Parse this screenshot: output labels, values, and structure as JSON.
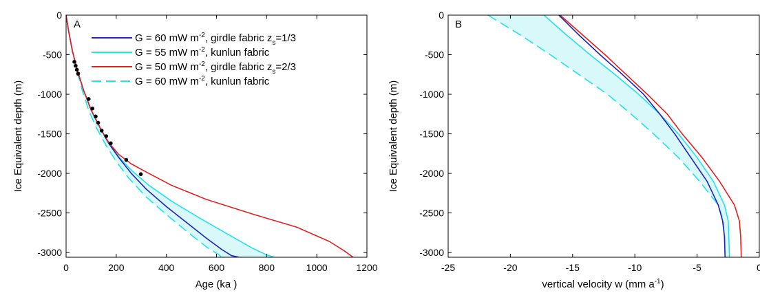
{
  "chart_data": [
    {
      "type": "line",
      "panel_label": "A",
      "xlabel": "Age (ka )",
      "ylabel": "Ice Equivalent depth (m)",
      "xlim": [
        0,
        1200
      ],
      "ylim": [
        -3060,
        0
      ],
      "xticks": [
        "0",
        "200",
        "400",
        "600",
        "800",
        "1000",
        "1200"
      ],
      "yticks": [
        "0",
        "-500",
        "-1000",
        "-1500",
        "-2000",
        "-2500",
        "-3000"
      ],
      "legend_position": "top-right",
      "legend": [
        {
          "main": "G = 60 mW m",
          "sup": "-2",
          "rest": ", girdle fabric z",
          "sub": "s",
          "tail": "=1/3",
          "color": "#1f1fbf",
          "dash": false
        },
        {
          "main": "G = 55 mW m",
          "sup": "-2",
          "rest": ", kunlun fabric",
          "sub": "",
          "tail": "",
          "color": "#22e0ea",
          "dash": false
        },
        {
          "main": "G = 50 mW m",
          "sup": "-2",
          "rest": ", girdle fabric z",
          "sub": "s",
          "tail": "=2/3",
          "color": "#e32020",
          "dash": false
        },
        {
          "main": "G = 60 mW m",
          "sup": "-2",
          "rest": ", kunlun fabric",
          "sub": "",
          "tail": "",
          "color": "#22e0ea",
          "dash": true
        }
      ],
      "series": [
        {
          "color": "#1f1fbf",
          "dash": false,
          "x": [
            0,
            10,
            25,
            45,
            70,
            100,
            135,
            170,
            210,
            260,
            320,
            400,
            480,
            560,
            620,
            660,
            690
          ],
          "y": [
            0,
            -200,
            -450,
            -700,
            -950,
            -1200,
            -1420,
            -1620,
            -1800,
            -2000,
            -2200,
            -2420,
            -2620,
            -2820,
            -2960,
            -3040,
            -3060
          ]
        },
        {
          "color": "#22e0ea",
          "dash": false,
          "x": [
            0,
            10,
            25,
            45,
            70,
            100,
            135,
            170,
            210,
            260,
            330,
            420,
            530,
            640,
            740,
            800,
            830
          ],
          "y": [
            0,
            -200,
            -450,
            -700,
            -950,
            -1200,
            -1420,
            -1620,
            -1790,
            -1960,
            -2150,
            -2350,
            -2560,
            -2760,
            -2940,
            -3030,
            -3060
          ]
        },
        {
          "color": "#e32020",
          "dash": false,
          "x": [
            0,
            10,
            25,
            45,
            70,
            100,
            135,
            170,
            210,
            260,
            330,
            420,
            560,
            750,
            920,
            1050,
            1110,
            1145
          ],
          "y": [
            0,
            -200,
            -450,
            -700,
            -950,
            -1200,
            -1420,
            -1610,
            -1760,
            -1880,
            -2000,
            -2150,
            -2330,
            -2520,
            -2680,
            -2860,
            -2980,
            -3060
          ]
        },
        {
          "color": "#22e0ea",
          "dash": true,
          "x": [
            0,
            10,
            25,
            45,
            65,
            90,
            120,
            160,
            200,
            250,
            320,
            400,
            480,
            560,
            610,
            620
          ],
          "y": [
            0,
            -200,
            -450,
            -720,
            -960,
            -1200,
            -1420,
            -1650,
            -1850,
            -2060,
            -2300,
            -2520,
            -2730,
            -2930,
            -3030,
            -3060
          ]
        }
      ],
      "observations": {
        "x": [
          33,
          38,
          43,
          48,
          90,
          105,
          118,
          128,
          142,
          160,
          178,
          240,
          298
        ],
        "y": [
          -590,
          -640,
          -690,
          -740,
          -1060,
          -1180,
          -1280,
          -1360,
          -1460,
          -1530,
          -1620,
          -1830,
          -2010
        ]
      }
    },
    {
      "type": "line",
      "panel_label": "B",
      "xlabel": "vertical velocity w (mm a",
      "xlabel_sup": "-1",
      "xlabel_end": ")",
      "ylabel": "Ice Equivalent depth (m)",
      "xlim": [
        -25,
        0
      ],
      "ylim": [
        -3060,
        0
      ],
      "xticks": [
        "-25",
        "-20",
        "-15",
        "-10",
        "-5",
        "0"
      ],
      "yticks": [
        "0",
        "-500",
        "-1000",
        "-1500",
        "-2000",
        "-2500",
        "-3000"
      ],
      "series": [
        {
          "color": "#1f1fbf",
          "dash": false,
          "x": [
            -16.1,
            -14.5,
            -12.8,
            -11.0,
            -9.3,
            -8.0,
            -6.8,
            -5.5,
            -4.2,
            -3.3,
            -2.95,
            -2.8,
            -2.75
          ],
          "y": [
            0,
            -250,
            -500,
            -750,
            -1000,
            -1250,
            -1500,
            -1800,
            -2100,
            -2400,
            -2600,
            -2800,
            -3060
          ]
        },
        {
          "color": "#22e0ea",
          "dash": false,
          "x": [
            -17.3,
            -15.5,
            -13.6,
            -11.6,
            -9.7,
            -8.0,
            -6.5,
            -5.0,
            -3.7,
            -2.8,
            -2.5,
            -2.45,
            -2.4
          ],
          "y": [
            0,
            -250,
            -500,
            -750,
            -1000,
            -1250,
            -1500,
            -1800,
            -2100,
            -2400,
            -2600,
            -2800,
            -3060
          ]
        },
        {
          "color": "#e32020",
          "dash": false,
          "x": [
            -16.0,
            -14.2,
            -12.4,
            -10.7,
            -9.0,
            -7.4,
            -6.2,
            -4.6,
            -3.2,
            -2.0,
            -1.6,
            -1.5,
            -1.45
          ],
          "y": [
            0,
            -250,
            -500,
            -750,
            -1000,
            -1250,
            -1500,
            -1800,
            -2100,
            -2400,
            -2600,
            -2800,
            -3060
          ]
        },
        {
          "color": "#22e0ea",
          "dash": true,
          "x": [
            -21.8,
            -19.2,
            -16.8,
            -14.5,
            -12.2,
            -10.3,
            -8.5,
            -6.5,
            -4.8,
            -3.3,
            -2.9,
            -2.8,
            -2.75
          ],
          "y": [
            0,
            -250,
            -500,
            -750,
            -1000,
            -1250,
            -1500,
            -1800,
            -2100,
            -2400,
            -2600,
            -2800,
            -3060
          ]
        }
      ]
    }
  ]
}
